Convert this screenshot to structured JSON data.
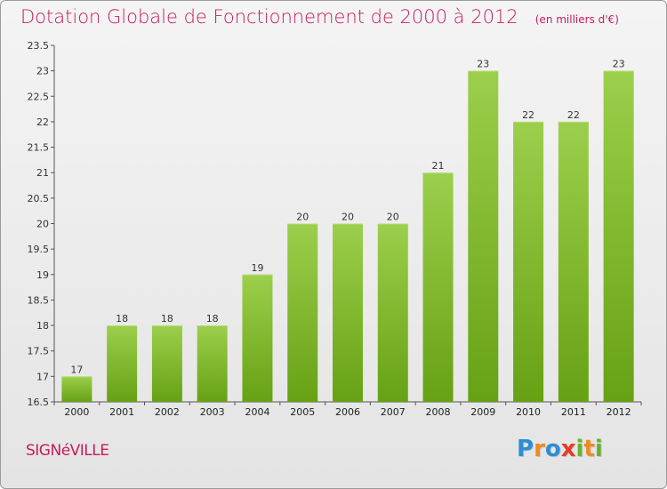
{
  "chart_data": {
    "type": "bar",
    "title": "Dotation Globale de Fonctionnement de 2000 à 2012",
    "unit": "(en milliers d'€)",
    "categories": [
      "2000",
      "2001",
      "2002",
      "2003",
      "2004",
      "2005",
      "2006",
      "2007",
      "2008",
      "2009",
      "2010",
      "2011",
      "2012"
    ],
    "values": [
      17,
      18,
      18,
      18,
      19,
      20,
      20,
      20,
      21,
      23,
      22,
      22,
      23
    ],
    "value_labels": [
      "17",
      "18",
      "18",
      "18",
      "19",
      "20",
      "20",
      "20",
      "21",
      "23",
      "22",
      "22",
      "23"
    ],
    "ylim": [
      16.5,
      23.5
    ],
    "yticks": [
      "16.5",
      "17",
      "17.5",
      "18",
      "18.5",
      "19",
      "19.5",
      "20",
      "20.5",
      "21",
      "21.5",
      "22",
      "22.5",
      "23",
      "23.5"
    ],
    "grid": false,
    "bar_color_top": "#9ccf4c",
    "bar_color_bottom": "#66a114"
  },
  "commune": "SIGNéVILLE",
  "brand": {
    "letters": [
      "P",
      "r",
      "o",
      "x",
      "i",
      "t",
      "i"
    ],
    "colors": [
      "#2a8fd4",
      "#f08a1c",
      "#2a8fd4",
      "#e83a2a",
      "#66b32e",
      "#f08a1c",
      "#66b32e"
    ]
  },
  "colors": {
    "title": "#c61c5c",
    "commune": "#c61c5c"
  }
}
